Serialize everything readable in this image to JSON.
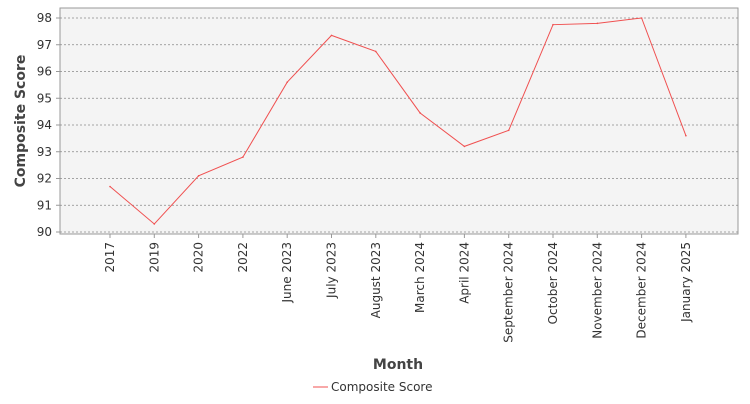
{
  "chart_data": {
    "type": "line",
    "categories": [
      "2017",
      "2019",
      "2020",
      "2022",
      "June 2023",
      "July 2023",
      "August 2023",
      "March 2024",
      "April 2024",
      "September 2024",
      "October 2024",
      "November 2024",
      "December 2024",
      "January 2025"
    ],
    "series": [
      {
        "name": "Composite Score",
        "values": [
          91.7,
          90.3,
          92.1,
          92.8,
          95.6,
          97.35,
          96.75,
          94.45,
          93.2,
          93.8,
          97.75,
          97.8,
          98.0,
          93.6
        ],
        "color": "#f05050"
      }
    ],
    "title": "",
    "xlabel": "Month",
    "ylabel": "Composite Score",
    "ylim": [
      90,
      98
    ],
    "yticks": [
      90,
      91,
      92,
      93,
      94,
      95,
      96,
      97,
      98
    ],
    "grid": true,
    "legend_position": "bottom-center"
  },
  "colors": {
    "plot_background": "#f4f4f4",
    "grid": "#888888",
    "axis": "#999999"
  }
}
